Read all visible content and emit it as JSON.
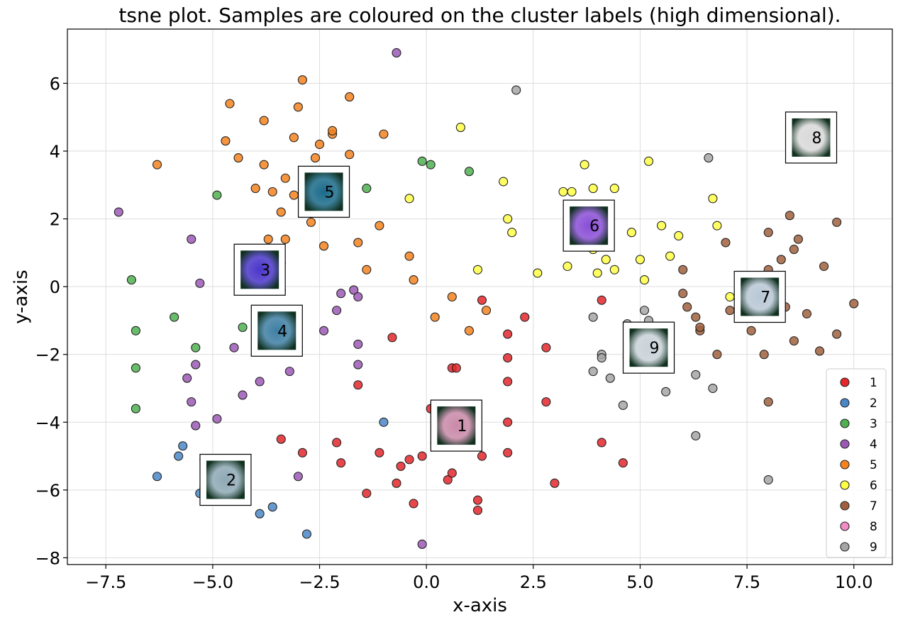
{
  "chart_data": {
    "type": "scatter",
    "title": "tsne plot. Samples are coloured on the cluster labels (high dimensional).",
    "xlabel": "x-axis",
    "ylabel": "y-axis",
    "xlim": [
      -8.4,
      10.9
    ],
    "ylim": [
      -8.2,
      7.6
    ],
    "xticks": [
      -7.5,
      -5.0,
      -2.5,
      0.0,
      2.5,
      5.0,
      7.5,
      10.0
    ],
    "xtick_labels": [
      "−7.5",
      "−5.0",
      "−2.5",
      "0.0",
      "2.5",
      "5.0",
      "7.5",
      "10.0"
    ],
    "yticks": [
      -8,
      -6,
      -4,
      -2,
      0,
      2,
      4,
      6
    ],
    "ytick_labels": [
      "−8",
      "−6",
      "−4",
      "−2",
      "0",
      "2",
      "4",
      "6"
    ],
    "grid": true,
    "legend_position": "bottom-right",
    "series": [
      {
        "name": "1",
        "color": "#e3272b",
        "points": [
          [
            0.1,
            -3.6
          ],
          [
            0.2,
            -3.5
          ],
          [
            0.2,
            -4.6
          ],
          [
            0.5,
            -5.7
          ],
          [
            0.6,
            -2.4
          ],
          [
            0.6,
            -4.7
          ],
          [
            0.6,
            -5.5
          ],
          [
            0.7,
            -2.4
          ],
          [
            1.0,
            -4.6
          ],
          [
            1.0,
            -3.9
          ],
          [
            1.2,
            -4.3
          ],
          [
            1.3,
            -0.4
          ],
          [
            1.3,
            -5.0
          ],
          [
            1.2,
            -6.3
          ],
          [
            1.2,
            -6.6
          ],
          [
            1.9,
            -2.1
          ],
          [
            1.9,
            -2.8
          ],
          [
            1.9,
            -1.4
          ],
          [
            1.9,
            -4.0
          ],
          [
            1.9,
            -4.9
          ],
          [
            2.3,
            -0.9
          ],
          [
            2.8,
            -1.8
          ],
          [
            2.8,
            -3.4
          ],
          [
            3.0,
            -5.8
          ],
          [
            4.1,
            -0.4
          ],
          [
            4.1,
            -4.6
          ],
          [
            4.6,
            -5.2
          ],
          [
            -0.8,
            -1.5
          ],
          [
            -1.1,
            -4.9
          ],
          [
            -1.4,
            -6.1
          ],
          [
            -1.6,
            -2.9
          ],
          [
            -2.0,
            -5.2
          ],
          [
            -2.1,
            -4.6
          ],
          [
            -2.9,
            -4.9
          ],
          [
            -3.4,
            -4.5
          ],
          [
            -0.1,
            -5.0
          ],
          [
            -0.4,
            -5.1
          ],
          [
            -0.6,
            -5.3
          ],
          [
            -0.7,
            -5.8
          ],
          [
            -0.3,
            -6.4
          ]
        ]
      },
      {
        "name": "2",
        "color": "#4a87c7",
        "points": [
          [
            -6.3,
            -5.6
          ],
          [
            -5.8,
            -5.0
          ],
          [
            -5.7,
            -4.7
          ],
          [
            -5.2,
            -5.1
          ],
          [
            -5.3,
            -6.1
          ],
          [
            -5.2,
            -5.9
          ],
          [
            -4.6,
            -5.7
          ],
          [
            -3.9,
            -6.7
          ],
          [
            -3.6,
            -6.5
          ],
          [
            -2.8,
            -7.3
          ],
          [
            -1.0,
            -4.0
          ]
        ]
      },
      {
        "name": "3",
        "color": "#4fb04f",
        "points": [
          [
            -6.9,
            0.2
          ],
          [
            -6.8,
            -1.3
          ],
          [
            -6.8,
            -2.4
          ],
          [
            -6.8,
            -3.6
          ],
          [
            -5.9,
            -0.9
          ],
          [
            -5.4,
            -1.8
          ],
          [
            -4.9,
            2.7
          ],
          [
            -4.3,
            -1.2
          ],
          [
            -1.4,
            2.9
          ],
          [
            -0.1,
            3.7
          ],
          [
            0.1,
            3.6
          ],
          [
            1.0,
            3.4
          ]
        ]
      },
      {
        "name": "4",
        "color": "#9b59b6",
        "points": [
          [
            -7.2,
            2.2
          ],
          [
            -5.5,
            1.4
          ],
          [
            -5.6,
            -2.7
          ],
          [
            -5.4,
            -2.3
          ],
          [
            -5.5,
            -3.4
          ],
          [
            -5.4,
            -4.1
          ],
          [
            -5.3,
            0.1
          ],
          [
            -4.9,
            -3.9
          ],
          [
            -4.5,
            -1.8
          ],
          [
            -4.4,
            1.1
          ],
          [
            -4.3,
            -0.1
          ],
          [
            -4.3,
            -3.2
          ],
          [
            -3.9,
            -2.8
          ],
          [
            -3.6,
            -0.8
          ],
          [
            -3.6,
            -1.8
          ],
          [
            -3.4,
            0.7
          ],
          [
            -3.4,
            -0.1
          ],
          [
            -3.2,
            -2.5
          ],
          [
            -3.1,
            -1.5
          ],
          [
            -3.0,
            -5.6
          ],
          [
            -2.4,
            -1.3
          ],
          [
            -2.1,
            -0.7
          ],
          [
            -2.0,
            -0.2
          ],
          [
            -1.7,
            -0.1
          ],
          [
            -1.6,
            -0.3
          ],
          [
            -1.6,
            -1.7
          ],
          [
            -1.6,
            -2.3
          ],
          [
            -0.7,
            6.9
          ],
          [
            -0.1,
            -7.6
          ]
        ]
      },
      {
        "name": "5",
        "color": "#f5831f",
        "points": [
          [
            -6.3,
            3.6
          ],
          [
            -4.7,
            4.3
          ],
          [
            -4.6,
            5.4
          ],
          [
            -4.4,
            3.8
          ],
          [
            -4.0,
            2.9
          ],
          [
            -3.8,
            3.6
          ],
          [
            -3.8,
            4.9
          ],
          [
            -3.7,
            1.4
          ],
          [
            -3.6,
            2.8
          ],
          [
            -3.4,
            2.2
          ],
          [
            -3.3,
            3.2
          ],
          [
            -3.3,
            1.4
          ],
          [
            -3.1,
            4.4
          ],
          [
            -3.1,
            2.7
          ],
          [
            -3.0,
            5.3
          ],
          [
            -2.9,
            6.1
          ],
          [
            -2.8,
            3.4
          ],
          [
            -2.7,
            1.9
          ],
          [
            -2.6,
            3.8
          ],
          [
            -2.6,
            2.8
          ],
          [
            -2.5,
            4.2
          ],
          [
            -2.4,
            3.0
          ],
          [
            -2.4,
            1.2
          ],
          [
            -2.3,
            2.9
          ],
          [
            -2.2,
            4.5
          ],
          [
            -2.2,
            4.6
          ],
          [
            -2.2,
            3.2
          ],
          [
            -2.2,
            3.3
          ],
          [
            -2.1,
            3.0
          ],
          [
            -1.8,
            5.6
          ],
          [
            -1.8,
            3.9
          ],
          [
            -1.6,
            1.3
          ],
          [
            -1.4,
            0.5
          ],
          [
            -1.0,
            4.5
          ],
          [
            -1.1,
            1.8
          ],
          [
            -0.4,
            0.9
          ],
          [
            -0.3,
            0.2
          ],
          [
            0.2,
            -0.9
          ],
          [
            0.6,
            -0.3
          ],
          [
            1.0,
            -1.3
          ],
          [
            1.4,
            -0.7
          ],
          [
            -2.5,
            2.3
          ]
        ]
      },
      {
        "name": "6",
        "color": "#ffff45",
        "points": [
          [
            0.8,
            4.7
          ],
          [
            1.2,
            0.5
          ],
          [
            1.8,
            3.1
          ],
          [
            1.9,
            2.0
          ],
          [
            2.0,
            1.6
          ],
          [
            2.6,
            0.4
          ],
          [
            3.2,
            2.8
          ],
          [
            3.3,
            0.6
          ],
          [
            3.4,
            2.8
          ],
          [
            3.5,
            1.8
          ],
          [
            3.7,
            3.6
          ],
          [
            3.9,
            1.1
          ],
          [
            3.9,
            2.9
          ],
          [
            4.0,
            0.4
          ],
          [
            4.2,
            0.8
          ],
          [
            4.4,
            2.9
          ],
          [
            4.4,
            0.5
          ],
          [
            4.8,
            1.6
          ],
          [
            5.0,
            0.8
          ],
          [
            5.1,
            0.2
          ],
          [
            5.2,
            3.7
          ],
          [
            5.5,
            1.8
          ],
          [
            5.7,
            0.9
          ],
          [
            5.9,
            1.5
          ],
          [
            6.7,
            2.6
          ],
          [
            6.8,
            1.8
          ],
          [
            7.1,
            -0.3
          ],
          [
            -0.4,
            2.6
          ]
        ]
      },
      {
        "name": "7",
        "color": "#a0603d",
        "points": [
          [
            6.0,
            -0.2
          ],
          [
            6.0,
            0.5
          ],
          [
            6.1,
            -0.6
          ],
          [
            6.3,
            -0.9
          ],
          [
            6.4,
            -1.3
          ],
          [
            6.4,
            -1.2
          ],
          [
            6.8,
            -2.0
          ],
          [
            7.0,
            1.3
          ],
          [
            7.1,
            -0.7
          ],
          [
            7.5,
            0.2
          ],
          [
            7.6,
            -1.3
          ],
          [
            7.8,
            0.1
          ],
          [
            7.9,
            -2.0
          ],
          [
            8.0,
            1.6
          ],
          [
            8.0,
            -3.4
          ],
          [
            8.0,
            0.5
          ],
          [
            8.3,
            0.8
          ],
          [
            8.4,
            -0.6
          ],
          [
            8.5,
            2.1
          ],
          [
            8.6,
            -1.6
          ],
          [
            8.6,
            1.1
          ],
          [
            8.7,
            1.4
          ],
          [
            8.9,
            -0.8
          ],
          [
            9.2,
            -1.9
          ],
          [
            9.3,
            0.6
          ],
          [
            9.6,
            1.9
          ],
          [
            9.6,
            -1.4
          ],
          [
            10.0,
            -0.5
          ]
        ]
      },
      {
        "name": "8",
        "color": "#f28cc6",
        "points": [
          [
            9.0,
            4.4
          ]
        ]
      },
      {
        "name": "9",
        "color": "#a6a6a6",
        "points": [
          [
            2.1,
            5.8
          ],
          [
            3.9,
            -0.9
          ],
          [
            3.9,
            -2.5
          ],
          [
            4.1,
            -2.0
          ],
          [
            4.1,
            -2.1
          ],
          [
            4.3,
            -2.7
          ],
          [
            4.6,
            -3.5
          ],
          [
            4.7,
            -1.1
          ],
          [
            4.7,
            -2.1
          ],
          [
            5.0,
            -1.5
          ],
          [
            5.1,
            -0.7
          ],
          [
            5.2,
            -1.0
          ],
          [
            5.3,
            -2.3
          ],
          [
            5.6,
            -3.1
          ],
          [
            6.3,
            -2.6
          ],
          [
            6.3,
            -4.4
          ],
          [
            6.6,
            3.8
          ],
          [
            6.7,
            -3.0
          ],
          [
            8.0,
            -5.7
          ]
        ]
      }
    ],
    "cluster_markers": [
      {
        "label": "1",
        "x": 0.7,
        "y": -4.1,
        "tint": "#c98aa8"
      },
      {
        "label": "2",
        "x": -4.7,
        "y": -5.7,
        "tint": "#8fa9b5"
      },
      {
        "label": "3",
        "x": -3.9,
        "y": 0.5,
        "tint": "#4a36c9"
      },
      {
        "label": "4",
        "x": -3.5,
        "y": -1.3,
        "tint": "#3f7fa3"
      },
      {
        "label": "5",
        "x": -2.4,
        "y": 2.8,
        "tint": "#1b6b8a"
      },
      {
        "label": "6",
        "x": 3.8,
        "y": 1.8,
        "tint": "#8a4fd6"
      },
      {
        "label": "7",
        "x": 7.8,
        "y": -0.3,
        "tint": "#b9c8d6"
      },
      {
        "label": "8",
        "x": 9.0,
        "y": 4.4,
        "tint": "#d9d9d9"
      },
      {
        "label": "9",
        "x": 5.2,
        "y": -1.8,
        "tint": "#c8d2d8"
      }
    ]
  }
}
